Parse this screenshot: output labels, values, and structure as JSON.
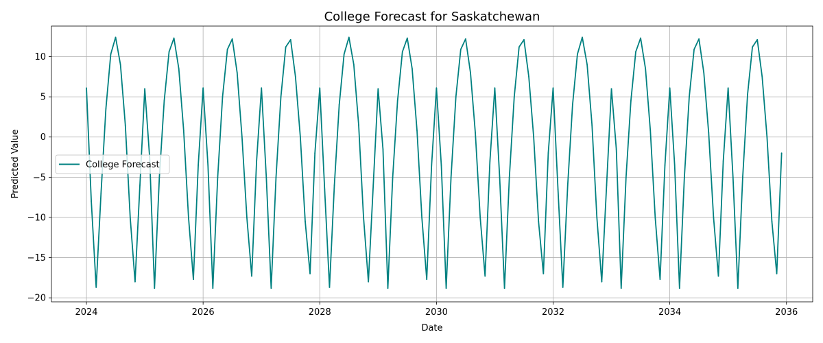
{
  "chart_data": {
    "type": "line",
    "title": "College Forecast for Saskatchewan",
    "xlabel": "Date",
    "ylabel": "Predicted Value",
    "xlim": [
      2023.4,
      2036.45
    ],
    "ylim": [
      -20.5,
      13.8
    ],
    "x_ticks": [
      2024,
      2026,
      2028,
      2030,
      2032,
      2034,
      2036
    ],
    "x_tick_labels": [
      "2024",
      "2026",
      "2028",
      "2030",
      "2032",
      "2034",
      "2036"
    ],
    "y_ticks": [
      -20,
      -15,
      -10,
      -5,
      0,
      5,
      10
    ],
    "y_tick_labels": [
      "−20",
      "−15",
      "−10",
      "−5",
      "0",
      "5",
      "10"
    ],
    "grid": true,
    "legend": {
      "location": "center-left",
      "entries": [
        "College Forecast"
      ]
    },
    "series": [
      {
        "name": "College Forecast",
        "color": "#008080",
        "x_start": "2024-01",
        "frequency": "monthly",
        "x": [
          "2024-01",
          "2024-02",
          "2024-03",
          "2024-04",
          "2024-05",
          "2024-06",
          "2024-07",
          "2024-08",
          "2024-09",
          "2024-10",
          "2024-11",
          "2024-12",
          "2025-01",
          "2025-02",
          "2025-03",
          "2025-04",
          "2025-05",
          "2025-06",
          "2025-07",
          "2025-08",
          "2025-09",
          "2025-10",
          "2025-11",
          "2025-12",
          "2026-01",
          "2026-02",
          "2026-03",
          "2026-04",
          "2026-05",
          "2026-06",
          "2026-07",
          "2026-08",
          "2026-09",
          "2026-10",
          "2026-11",
          "2026-12",
          "2027-01",
          "2027-02",
          "2027-03",
          "2027-04",
          "2027-05",
          "2027-06",
          "2027-07",
          "2027-08",
          "2027-09",
          "2027-10",
          "2027-11",
          "2027-12",
          "2028-01",
          "2028-02",
          "2028-03",
          "2028-04",
          "2028-05",
          "2028-06",
          "2028-07",
          "2028-08",
          "2028-09",
          "2028-10",
          "2028-11",
          "2028-12",
          "2029-01",
          "2029-02",
          "2029-03",
          "2029-04",
          "2029-05",
          "2029-06",
          "2029-07",
          "2029-08",
          "2029-09",
          "2029-10",
          "2029-11",
          "2029-12",
          "2030-01",
          "2030-02",
          "2030-03",
          "2030-04",
          "2030-05",
          "2030-06",
          "2030-07",
          "2030-08",
          "2030-09",
          "2030-10",
          "2030-11",
          "2030-12",
          "2031-01",
          "2031-02",
          "2031-03",
          "2031-04",
          "2031-05",
          "2031-06",
          "2031-07",
          "2031-08",
          "2031-09",
          "2031-10",
          "2031-11",
          "2031-12",
          "2032-01",
          "2032-02",
          "2032-03",
          "2032-04",
          "2032-05",
          "2032-06",
          "2032-07",
          "2032-08",
          "2032-09",
          "2032-10",
          "2032-11",
          "2032-12",
          "2033-01",
          "2033-02",
          "2033-03",
          "2033-04",
          "2033-05",
          "2033-06",
          "2033-07",
          "2033-08",
          "2033-09",
          "2033-10",
          "2033-11",
          "2033-12",
          "2034-01",
          "2034-02",
          "2034-03",
          "2034-04",
          "2034-05",
          "2034-06",
          "2034-07",
          "2034-08",
          "2034-09",
          "2034-10",
          "2034-11",
          "2034-12",
          "2035-01",
          "2035-02",
          "2035-03",
          "2035-04",
          "2035-05",
          "2035-06",
          "2035-07",
          "2035-08",
          "2035-09",
          "2035-10",
          "2035-11",
          "2035-12"
        ],
        "values": [
          6.1,
          -8.0,
          -18.7,
          -7.0,
          3.5,
          10.3,
          12.4,
          9.0,
          1.5,
          -10.0,
          -18.0,
          -6.0,
          6.0,
          -2.5,
          -18.8,
          -5.0,
          4.5,
          10.6,
          12.3,
          8.5,
          0.8,
          -10.0,
          -17.7,
          -3.5,
          6.1,
          -3.5,
          -18.8,
          -5.0,
          5.0,
          10.9,
          12.2,
          8.0,
          0.0,
          -10.0,
          -17.3,
          -3.0,
          6.1,
          -5.0,
          -18.8,
          -5.0,
          5.0,
          11.2,
          12.1,
          7.5,
          0.0,
          -10.5,
          -17.0,
          -2.0,
          6.1,
          -6.5,
          -18.7,
          -6.0,
          4.0,
          10.3,
          12.4,
          9.0,
          1.5,
          -10.0,
          -18.0,
          -6.0,
          6.0,
          -1.5,
          -18.8,
          -5.0,
          4.5,
          10.6,
          12.3,
          8.5,
          0.8,
          -10.0,
          -17.7,
          -3.5,
          6.1,
          -3.5,
          -18.8,
          -5.0,
          5.0,
          10.9,
          12.2,
          8.0,
          0.5,
          -10.0,
          -17.3,
          -3.0,
          6.1,
          -5.0,
          -18.8,
          -5.0,
          5.0,
          11.2,
          12.1,
          7.5,
          0.0,
          -10.5,
          -17.0,
          -2.0,
          6.1,
          -6.5,
          -18.7,
          -6.0,
          4.0,
          10.3,
          12.4,
          9.0,
          1.5,
          -10.0,
          -18.0,
          -6.0,
          6.0,
          -1.5,
          -18.8,
          -5.0,
          4.5,
          10.6,
          12.3,
          8.5,
          0.8,
          -10.0,
          -17.7,
          -3.5,
          6.1,
          -3.5,
          -18.8,
          -5.0,
          5.0,
          10.9,
          12.2,
          8.0,
          0.5,
          -10.0,
          -17.3,
          -3.0,
          6.1,
          -5.0,
          -18.8,
          -5.0,
          5.3,
          11.2,
          12.1,
          7.5,
          0.0,
          -10.5,
          -17.0,
          -2.0
        ]
      }
    ]
  }
}
